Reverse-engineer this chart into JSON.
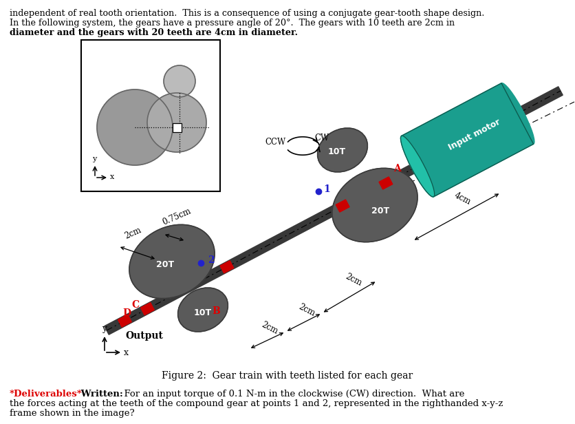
{
  "top_text_line1": "independent of real tooth orientation.  This is a consequence of using a conjugate gear-tooth shape design.",
  "top_text_line2": "In the following system, the gears have a pressure angle of 20°.  The gears with 10 teeth are 2cm in",
  "top_text_line3": "diameter and the gears with 20 teeth are 4cm in diameter.",
  "figure_caption": "Figure 2:  Gear train with teeth listed for each gear",
  "bg_color": "#ffffff",
  "gear_color": "#5a5a5a",
  "gear_edge_color": "#3a3a3a",
  "shaft_color": "#383838",
  "motor_body_color": "#1a9e8e",
  "motor_face_color": "#22c0a8",
  "red_color": "#dd0000",
  "blue_color": "#2222cc",
  "black": "#000000",
  "inset_lg_color": "#999999",
  "inset_md_color": "#aaaaaa",
  "inset_sm_color": "#bbbbbb"
}
